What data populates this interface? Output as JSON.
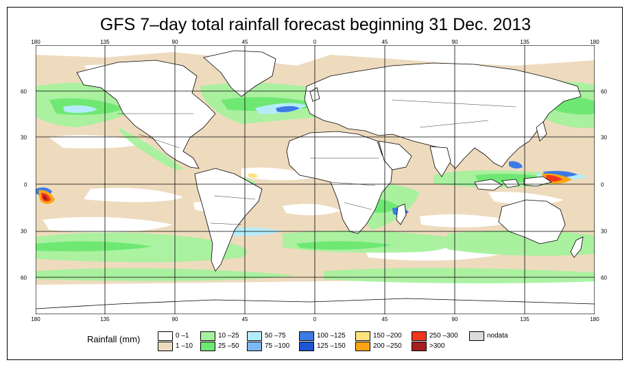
{
  "title": "GFS 7–day total rainfall forecast beginning 31 Dec. 2013",
  "axes": {
    "lon_top": [
      "180",
      "135",
      "90",
      "45",
      "0",
      "45",
      "90",
      "135",
      "180"
    ],
    "lon_bottom": [
      "180",
      "135",
      "90",
      "45",
      "0",
      "45",
      "90",
      "135",
      "180"
    ],
    "lat_left": [
      "60",
      "30",
      "0",
      "30",
      "60"
    ],
    "lat_right": [
      "60",
      "30",
      "0",
      "30",
      "60"
    ]
  },
  "legend": {
    "title": "Rainfall (mm)",
    "items": [
      {
        "label": "0 –1",
        "color": "#ffffff"
      },
      {
        "label": "1 –10",
        "color": "#eedbbe"
      },
      {
        "label": "10 –25",
        "color": "#a6f29e"
      },
      {
        "label": "25 –50",
        "color": "#6fe873"
      },
      {
        "label": "50 –75",
        "color": "#b5ecfb"
      },
      {
        "label": "75 –100",
        "color": "#7cb9f2"
      },
      {
        "label": "100 –125",
        "color": "#3c7be4"
      },
      {
        "label": "125 –150",
        "color": "#1d55d4"
      },
      {
        "label": "150 –200",
        "color": "#fde37c"
      },
      {
        "label": "200 –250",
        "color": "#fba514"
      },
      {
        "label": "250 –300",
        "color": "#f2351d"
      },
      {
        "label": ">300",
        "color": "#a51f1f"
      },
      {
        "label": "nodata",
        "color": "#dcdcdc"
      }
    ]
  }
}
